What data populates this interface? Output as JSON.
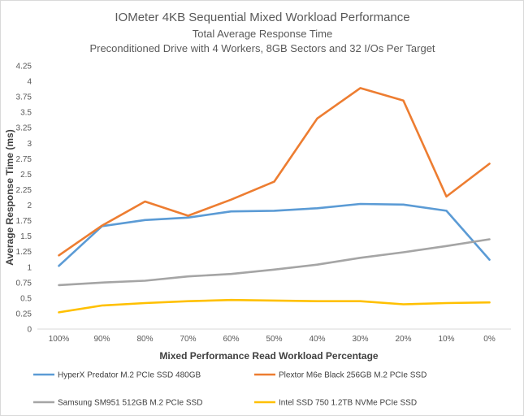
{
  "chart_data": {
    "type": "line",
    "title": "IOMeter 4KB Sequential Mixed Workload Performance",
    "subtitle": "Total Average Response Time",
    "subtitle2": "Preconditioned  Drive with 4 Workers, 8GB Sectors and 32 I/Os Per Target",
    "xlabel": "Mixed Performance Read Workload Percentage",
    "ylabel": "Average Response Time (ms)",
    "categories": [
      "100%",
      "90%",
      "80%",
      "70%",
      "60%",
      "50%",
      "40%",
      "30%",
      "20%",
      "10%",
      "0%"
    ],
    "ylim": [
      0,
      4.25
    ],
    "yticks": [
      "0",
      "0.25",
      "0.5",
      "0.75",
      "1",
      "1.25",
      "1.5",
      "1.75",
      "2",
      "2.25",
      "2.5",
      "2.75",
      "3",
      "3.25",
      "3.5",
      "3.75",
      "4",
      "4.25"
    ],
    "grid": false,
    "legend_position": "bottom",
    "series": [
      {
        "name": "HyperX Predator M.2 PCIe SSD 480GB",
        "color": "#5b9bd5",
        "values": [
          1.02,
          1.66,
          1.76,
          1.8,
          1.9,
          1.91,
          1.95,
          2.02,
          2.01,
          1.91,
          1.12
        ]
      },
      {
        "name": "Plextor M6e Black 256GB M.2 PCIe SSD",
        "color": "#ed7d31",
        "values": [
          1.19,
          1.67,
          2.06,
          1.83,
          2.09,
          2.38,
          3.4,
          3.89,
          3.69,
          2.14,
          2.67
        ]
      },
      {
        "name": "Samsung SM951 512GB M.2 PCIe SSD",
        "color": "#a5a5a5",
        "values": [
          0.71,
          0.75,
          0.78,
          0.85,
          0.89,
          0.96,
          1.04,
          1.15,
          1.24,
          1.34,
          1.45
        ]
      },
      {
        "name": "Intel SSD 750 1.2TB NVMe PCIe SSD",
        "color": "#ffc000",
        "values": [
          0.27,
          0.38,
          0.42,
          0.45,
          0.47,
          0.46,
          0.45,
          0.45,
          0.4,
          0.42,
          0.43
        ]
      }
    ]
  }
}
